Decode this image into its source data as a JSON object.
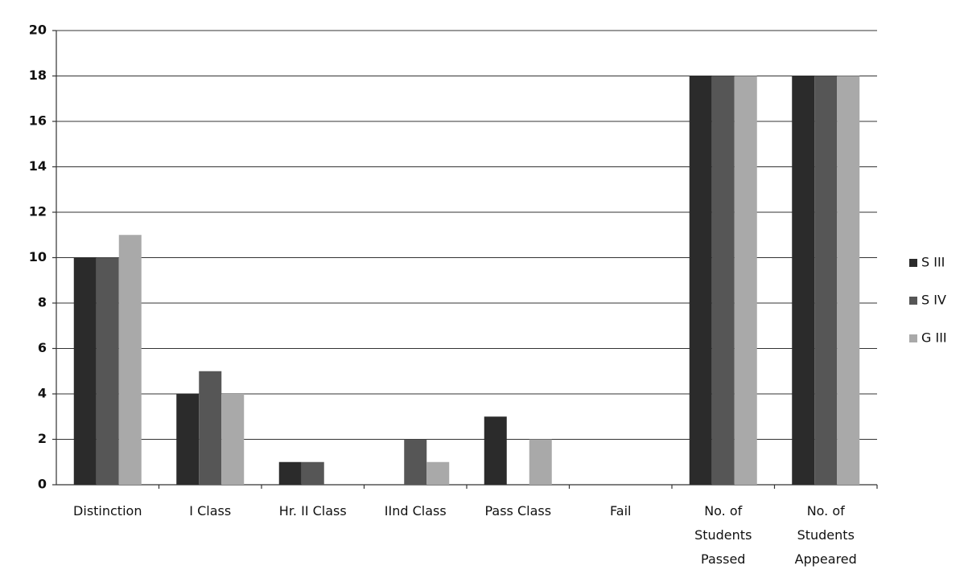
{
  "chart_data": {
    "type": "bar",
    "categories": [
      "Distinction",
      "I Class",
      "Hr. II Class",
      "IInd Class",
      "Pass Class",
      "Fail",
      "No. of Students Passed",
      "No. of Students Appeared"
    ],
    "series": [
      {
        "name": "S III",
        "color": "#2b2b2b",
        "values": [
          10,
          4,
          1,
          0,
          3,
          0,
          18,
          18
        ]
      },
      {
        "name": "S IV",
        "color": "#565656",
        "values": [
          10,
          5,
          1,
          2,
          0,
          0,
          18,
          18
        ]
      },
      {
        "name": "G III",
        "color": "#a9a9a9",
        "values": [
          11,
          4,
          0,
          1,
          2,
          0,
          18,
          18
        ]
      }
    ],
    "ylim": [
      0,
      20
    ],
    "yticks": [
      0,
      2,
      4,
      6,
      8,
      10,
      12,
      14,
      16,
      18,
      20
    ],
    "grid": true,
    "legend": "right"
  }
}
